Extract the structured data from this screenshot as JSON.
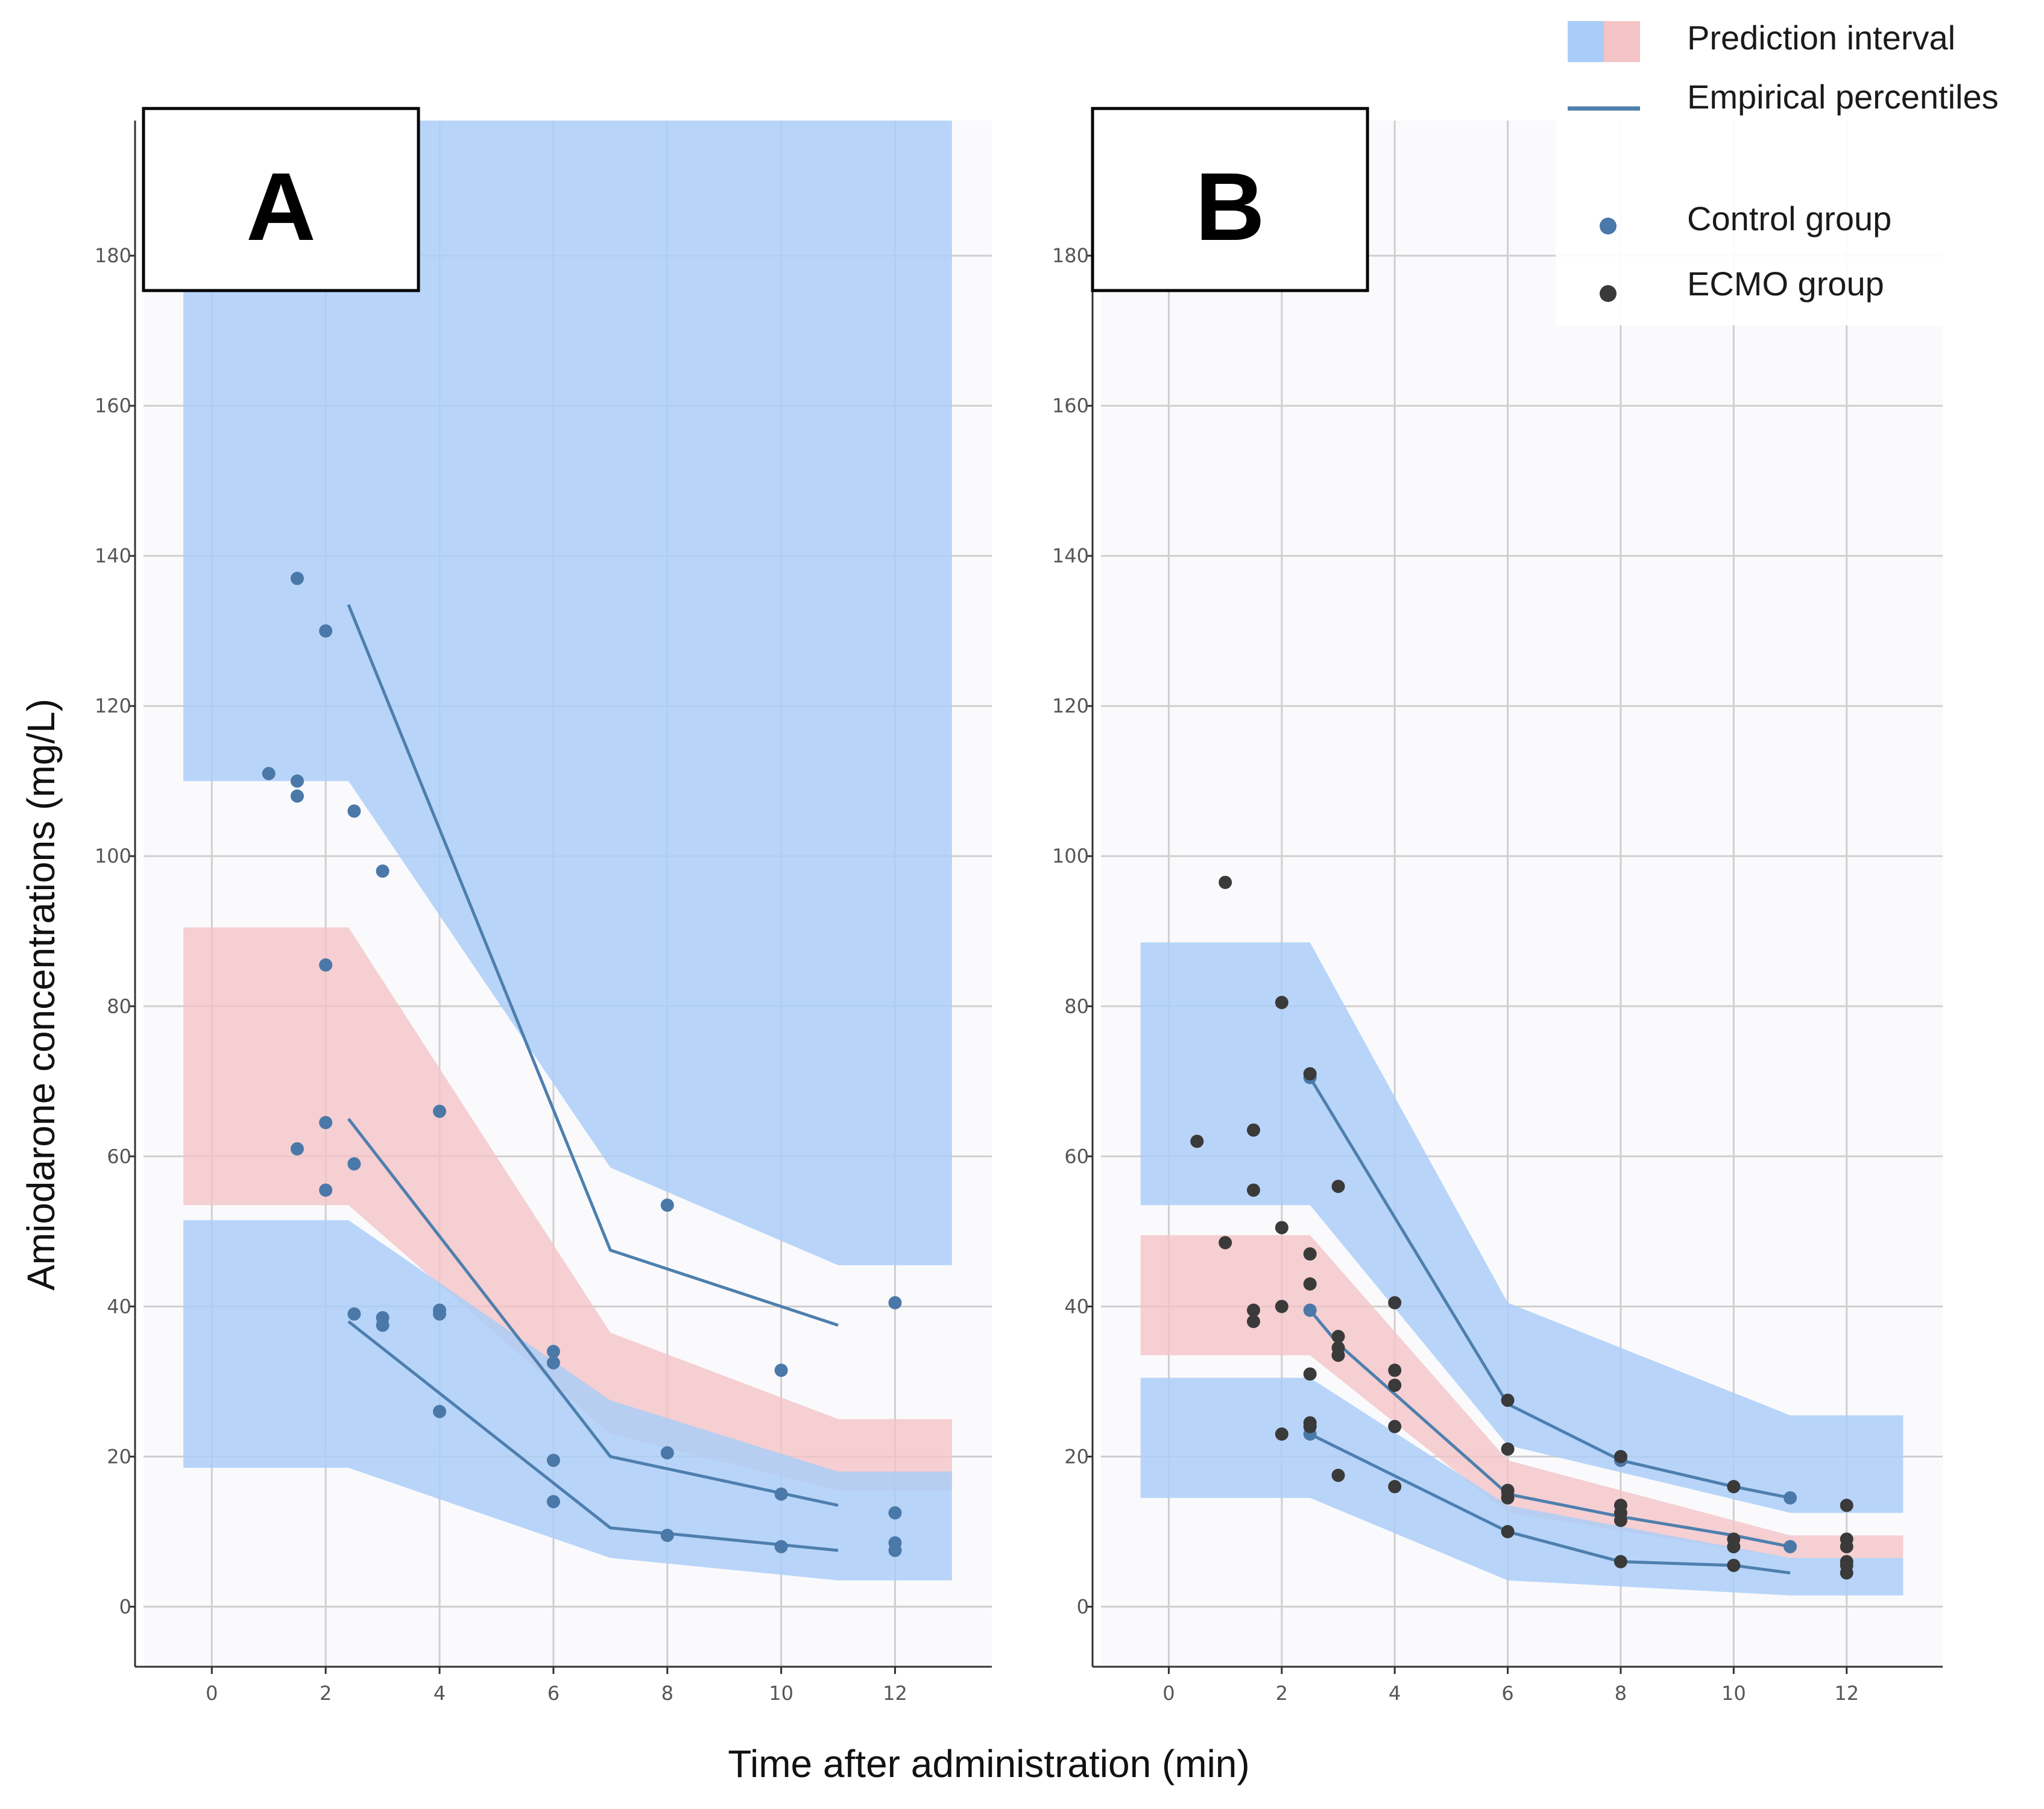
{
  "chart_data": [
    {
      "type": "line",
      "panel_label": "A",
      "xlabel": "Time after administration (min)",
      "ylabel": "Amiodarone concentrations (mg/L)",
      "xlim": [
        -1.2,
        13.7
      ],
      "ylim": [
        -8,
        198
      ],
      "x_ticks": [
        0,
        2,
        4,
        6,
        8,
        10,
        12
      ],
      "y_ticks": [
        0,
        20,
        40,
        60,
        80,
        100,
        120,
        140,
        160,
        180
      ],
      "grid": true,
      "bands": [
        {
          "name": "upper percentile PI",
          "color": "#a9cdf8",
          "x": [
            -0.5,
            2.4,
            7,
            11,
            13
          ],
          "lower": [
            110,
            110,
            58.5,
            45.5,
            45.5
          ],
          "upper": [
            198,
            198,
            198,
            198,
            198
          ]
        },
        {
          "name": "median PI",
          "color": "#f3c3c5",
          "x": [
            -0.5,
            2.4,
            7,
            11,
            13
          ],
          "lower": [
            53.5,
            53.5,
            23,
            15.5,
            15.5
          ],
          "upper": [
            90.5,
            90.5,
            36.5,
            25,
            25
          ]
        },
        {
          "name": "lower percentile PI",
          "color": "#a9cdf8",
          "x": [
            -0.5,
            2.4,
            7,
            11,
            13
          ],
          "lower": [
            18.5,
            18.5,
            6.5,
            3.5,
            3.5
          ],
          "upper": [
            51.5,
            51.5,
            27.5,
            18,
            18
          ]
        }
      ],
      "series": [
        {
          "name": "Empirical 95th percentile",
          "x": [
            2.4,
            7,
            11
          ],
          "y": [
            133.5,
            47.5,
            37.5
          ]
        },
        {
          "name": "Empirical median",
          "x": [
            2.4,
            7,
            11
          ],
          "y": [
            65,
            20,
            13.5
          ]
        },
        {
          "name": "Empirical 5th percentile",
          "x": [
            2.4,
            7,
            11
          ],
          "y": [
            38,
            10.5,
            7.5
          ]
        }
      ],
      "points": [
        {
          "group": "Control group",
          "x": [
            1,
            1.5,
            1.5,
            1.5,
            1.5,
            2,
            2,
            2,
            2,
            2.5,
            2.5,
            2.5,
            3,
            3,
            3,
            4,
            4,
            4,
            4,
            6,
            6,
            6,
            6,
            8,
            8,
            8,
            10,
            10,
            10,
            12,
            12,
            12,
            12
          ],
          "y": [
            111,
            137,
            110,
            108,
            61,
            130,
            85.5,
            64.5,
            55.5,
            106,
            59,
            39,
            98,
            38.5,
            37.5,
            66,
            39.5,
            39,
            26,
            34,
            32.5,
            19.5,
            14,
            53.5,
            20.5,
            9.5,
            31.5,
            15,
            8,
            40.5,
            12.5,
            8.5,
            7.5
          ]
        }
      ]
    },
    {
      "type": "line",
      "panel_label": "B",
      "xlabel": "Time after administration (min)",
      "ylabel": "Amiodarone concentrations (mg/L)",
      "xlim": [
        -1.2,
        13.7
      ],
      "ylim": [
        -8,
        198
      ],
      "x_ticks": [
        0,
        2,
        4,
        6,
        8,
        10,
        12
      ],
      "y_ticks": [
        0,
        20,
        40,
        60,
        80,
        100,
        120,
        140,
        160,
        180
      ],
      "grid": true,
      "bands": [
        {
          "name": "upper percentile PI",
          "color": "#a9cdf8",
          "x": [
            -0.5,
            2.5,
            6,
            11,
            13
          ],
          "lower": [
            53.5,
            53.5,
            21.5,
            12.5,
            12.5
          ],
          "upper": [
            88.5,
            88.5,
            40.5,
            25.5,
            25.5
          ]
        },
        {
          "name": "median PI",
          "color": "#f3c3c5",
          "x": [
            -0.5,
            2.5,
            6,
            11,
            13
          ],
          "lower": [
            33.5,
            33.5,
            12.5,
            6.5,
            6.5
          ],
          "upper": [
            49.5,
            49.5,
            19.5,
            9.5,
            9.5
          ]
        },
        {
          "name": "lower percentile PI",
          "color": "#a9cdf8",
          "x": [
            -0.5,
            2.5,
            6,
            11,
            13
          ],
          "lower": [
            14.5,
            14.5,
            3.5,
            1.5,
            1.5
          ],
          "upper": [
            30.5,
            30.5,
            13.5,
            6.5,
            6.5
          ]
        }
      ],
      "series": [
        {
          "name": "Empirical 95th percentile",
          "x": [
            2.5,
            6,
            8,
            10,
            11
          ],
          "y": [
            70.5,
            27,
            19.5,
            16,
            14.5
          ]
        },
        {
          "name": "Empirical median",
          "x": [
            2.5,
            3,
            6,
            8,
            10,
            11
          ],
          "y": [
            39.5,
            35,
            15,
            12,
            9.5,
            8
          ]
        },
        {
          "name": "Empirical 5th percentile",
          "x": [
            2.5,
            6,
            8,
            10,
            11
          ],
          "y": [
            23,
            10,
            6,
            5.5,
            4.5
          ]
        }
      ],
      "points": [
        {
          "group": "Control group",
          "x": [
            2.5,
            2.5,
            2.5,
            6,
            8,
            10,
            11,
            11
          ],
          "y": [
            70.5,
            39.5,
            23,
            15,
            19.5,
            8,
            14.5,
            8
          ]
        },
        {
          "group": "ECMO group",
          "x": [
            0.5,
            1,
            1,
            1.5,
            1.5,
            1.5,
            1.5,
            2,
            2,
            2,
            2,
            2.5,
            2.5,
            2.5,
            2.5,
            2.5,
            2.5,
            3,
            3,
            3,
            3,
            3,
            4,
            4,
            4,
            4,
            4,
            6,
            6,
            6,
            6,
            6,
            8,
            8,
            8,
            8,
            8,
            10,
            10,
            10,
            10,
            12,
            12,
            12,
            12,
            12,
            12
          ],
          "y": [
            62,
            96.5,
            48.5,
            63.5,
            55.5,
            39.5,
            38,
            80.5,
            50.5,
            40,
            23,
            71,
            47,
            43,
            31,
            24.5,
            24,
            56,
            36,
            34.5,
            33.5,
            17.5,
            40.5,
            31.5,
            29.5,
            24,
            16,
            27.5,
            21,
            15.5,
            14.5,
            10,
            20,
            13.5,
            12.5,
            11.5,
            6,
            16,
            9,
            8,
            5.5,
            13.5,
            9,
            8,
            6,
            5.5,
            4.5
          ]
        }
      ]
    }
  ],
  "legend": {
    "items": [
      {
        "label": "Prediction interval",
        "kind": "band"
      },
      {
        "label": "Empirical percentiles",
        "kind": "line"
      },
      {
        "label": "Control group",
        "kind": "point"
      },
      {
        "label": "ECMO group",
        "kind": "point"
      }
    ]
  },
  "colors": {
    "blue_band": "#a9cdf8",
    "pink_band": "#f3c3c5",
    "line": "#4e7fae",
    "control_point": "#4a78a8",
    "ecmo_point": "#3a3a3a",
    "grid": "#cfcfcf",
    "plot_bg": "#fafafd"
  }
}
